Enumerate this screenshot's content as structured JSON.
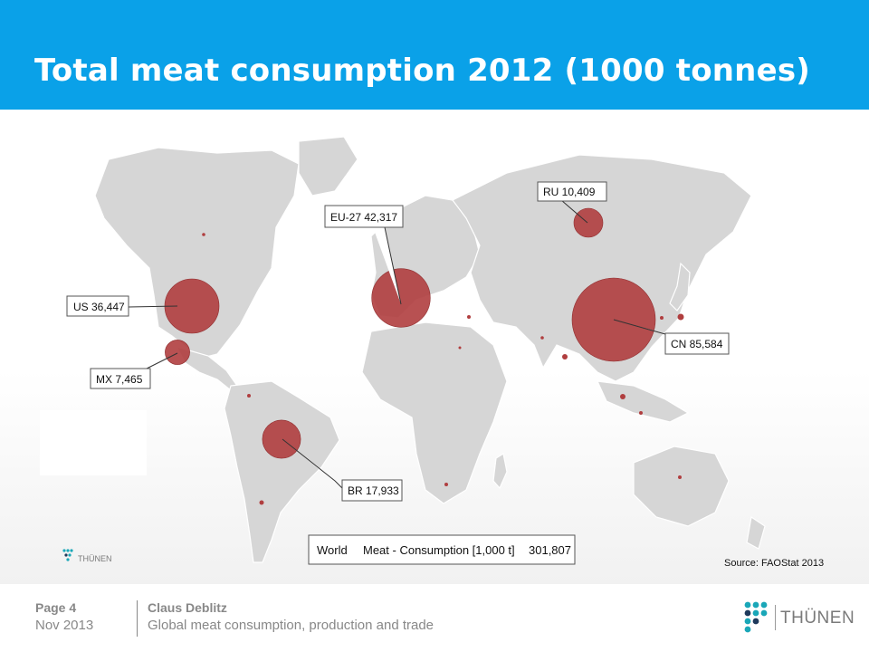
{
  "slide": {
    "title": "Total meat consumption 2012 (1000 tonnes)",
    "source": "Source: FAOStat 2013"
  },
  "legend": {
    "world_label": "World",
    "measure_label": "Meat - Consumption [1,000 t]",
    "world_total": "301,807"
  },
  "labels": {
    "us": "US 36,447",
    "mx": "MX 7,465",
    "eu": "EU-27 42,317",
    "ru": "RU 10,409",
    "cn": "CN 85,584",
    "br": "BR 17,933"
  },
  "chart_data": {
    "type": "bubble-map",
    "title": "Total meat consumption 2012 (1000 tonnes)",
    "unit": "1000 tonnes",
    "world_total": 301807,
    "regions": [
      {
        "code": "US",
        "value": 36447
      },
      {
        "code": "MX",
        "value": 7465
      },
      {
        "code": "EU-27",
        "value": 42317
      },
      {
        "code": "RU",
        "value": 10409
      },
      {
        "code": "CN",
        "value": 85584
      },
      {
        "code": "BR",
        "value": 17933
      }
    ]
  },
  "footer": {
    "page": "Page 4",
    "date": "Nov 2013",
    "author": "Claus Deblitz",
    "subtitle": "Global meat consumption, production and trade",
    "logo_text": "THÜNEN"
  },
  "colors": {
    "header": "#0aa1e8",
    "bubble": "#b03e3f",
    "land": "#d6d6d6",
    "logo_teal": "#1aa7b8",
    "logo_dark": "#1f3a5c"
  }
}
